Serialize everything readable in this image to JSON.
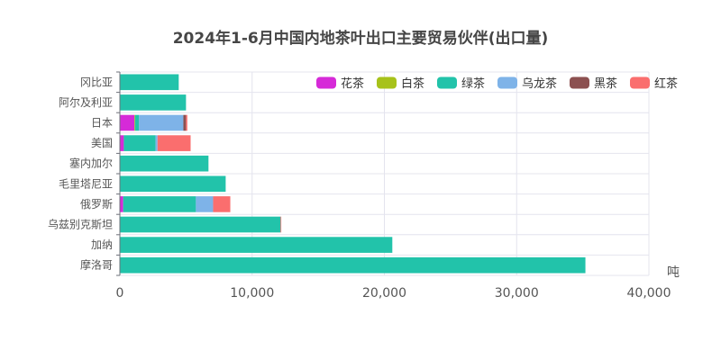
{
  "chart_data": {
    "type": "bar",
    "orientation": "horizontal",
    "stacked": true,
    "title": "2024年1-6月中国内地茶叶出口主要贸易伙伴(出口量)",
    "unit": "吨",
    "xlim": [
      0,
      40000
    ],
    "x_ticks": [
      "0",
      "10,000",
      "20,000",
      "30,000",
      "40,000"
    ],
    "grid": true,
    "legend_position": "top-right",
    "categories": [
      "冈比亚",
      "阿尔及利亚",
      "日本",
      "美国",
      "塞内加尔",
      "毛里塔尼亚",
      "俄罗斯",
      "乌兹别克斯坦",
      "加纳",
      "摩洛哥"
    ],
    "series": [
      {
        "name": "花茶",
        "color": "#d62ad8",
        "values": [
          0,
          0,
          1100,
          300,
          0,
          0,
          250,
          0,
          0,
          0
        ]
      },
      {
        "name": "白茶",
        "color": "#a7c21a",
        "values": [
          0,
          0,
          50,
          0,
          0,
          0,
          0,
          0,
          0,
          0
        ]
      },
      {
        "name": "绿茶",
        "color": "#22c3aa",
        "values": [
          4450,
          5000,
          300,
          2400,
          6700,
          8000,
          5500,
          12150,
          20600,
          35200
        ]
      },
      {
        "name": "乌龙茶",
        "color": "#7eb3e8",
        "values": [
          0,
          0,
          3350,
          150,
          0,
          0,
          1300,
          0,
          0,
          0
        ]
      },
      {
        "name": "黑茶",
        "color": "#8c5050",
        "values": [
          0,
          0,
          200,
          0,
          0,
          0,
          0,
          0,
          0,
          0
        ]
      },
      {
        "name": "红茶",
        "color": "#fa6e6e",
        "values": [
          0,
          0,
          100,
          2500,
          0,
          0,
          1300,
          50,
          0,
          0
        ]
      }
    ]
  }
}
